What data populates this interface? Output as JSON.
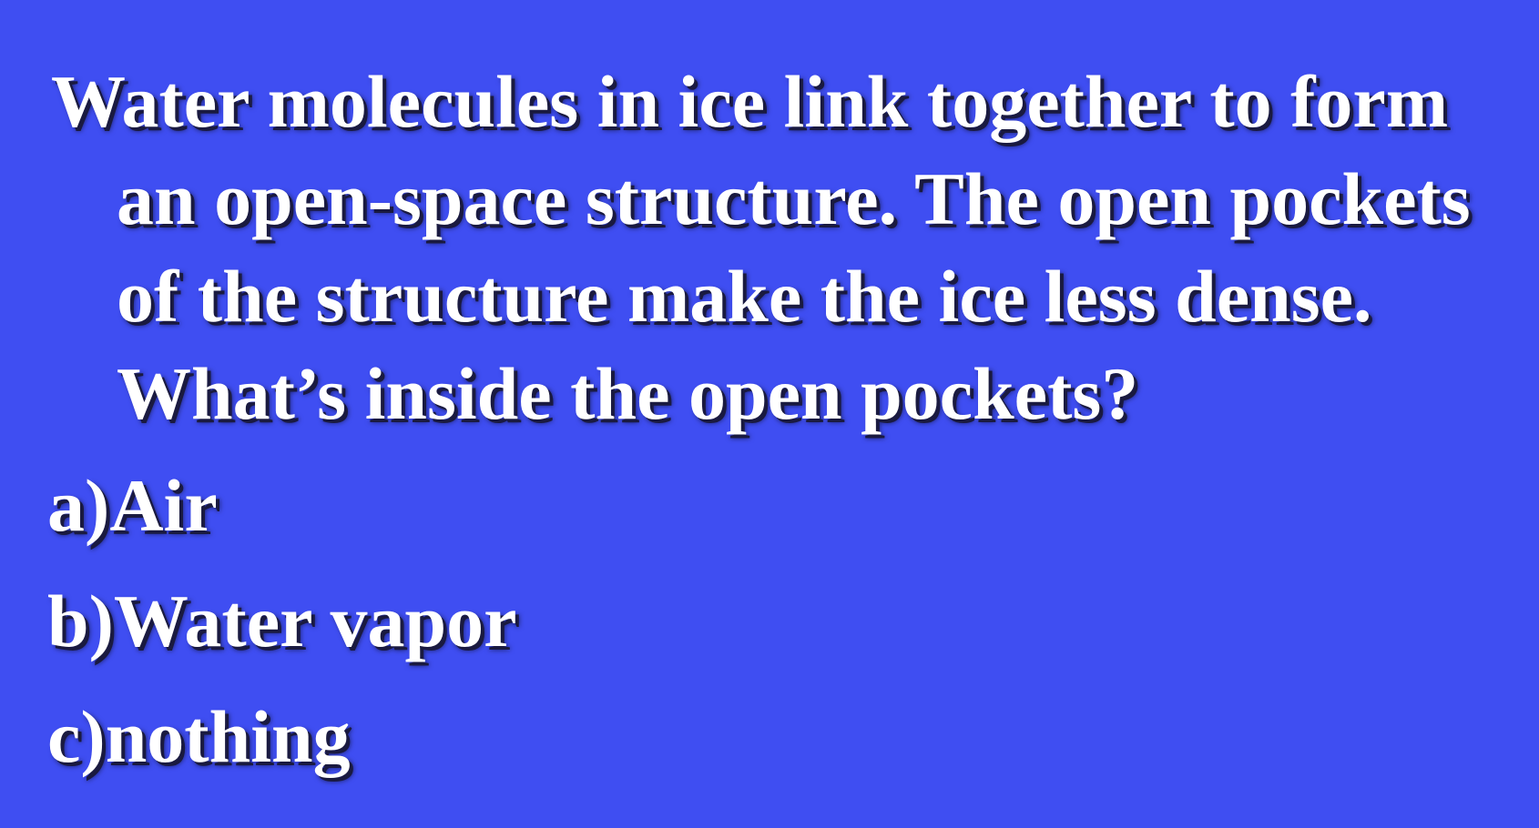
{
  "slide": {
    "background_color": "#3f4ef2",
    "text_color": "#ffffff",
    "question": "Water molecules in ice link together to form an open-space structure. The open pockets of the structure make the ice less dense. What’s inside the open pockets?",
    "options": [
      {
        "letter": "a)",
        "text": "Air"
      },
      {
        "letter": "b)",
        "text": "Water vapor"
      },
      {
        "letter": "c)",
        "text": "nothing"
      }
    ]
  }
}
